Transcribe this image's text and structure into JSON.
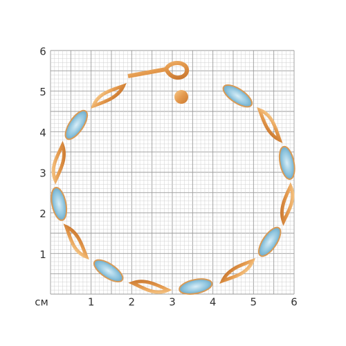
{
  "axes": {
    "unit": "см",
    "x_labels": [
      "1",
      "2",
      "3",
      "4",
      "5",
      "6"
    ],
    "y_labels": [
      "1",
      "2",
      "3",
      "4",
      "5",
      "6"
    ]
  }
}
